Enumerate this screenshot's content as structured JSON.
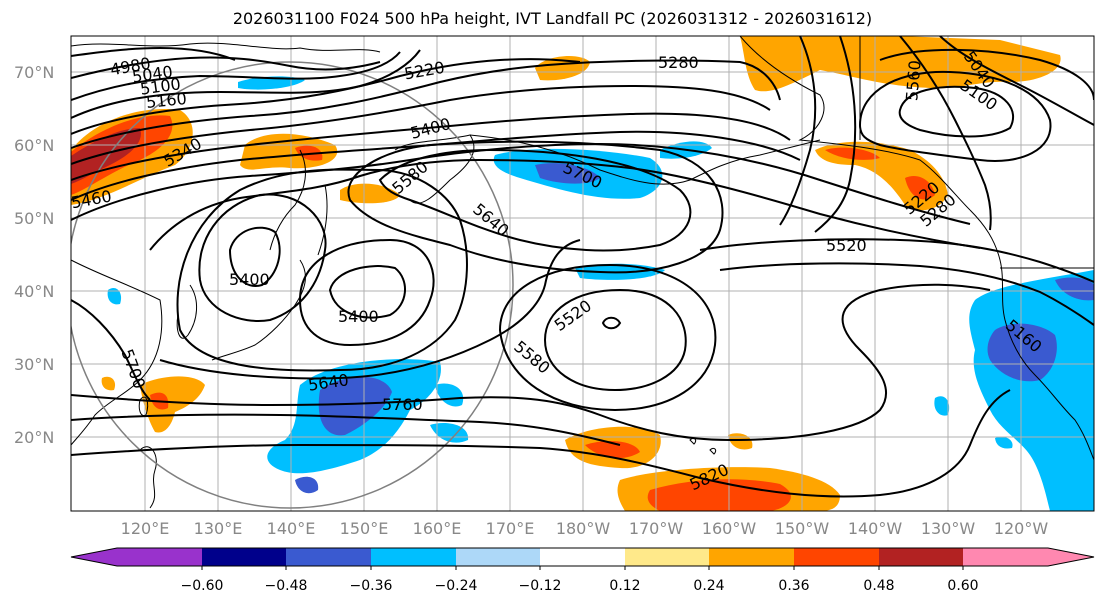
{
  "title": "2026031100 F024 500 hPa height, IVT Landfall PC (2026031312 - 2026031612)",
  "latitude_labels": [
    "70°N",
    "60°N",
    "50°N",
    "40°N",
    "30°N",
    "20°N"
  ],
  "longitude_labels": [
    "120°E",
    "130°E",
    "140°E",
    "150°E",
    "160°E",
    "170°E",
    "180°W",
    "170°W",
    "160°W",
    "150°W",
    "140°W",
    "130°W",
    "120°W"
  ],
  "contour_labels": [
    "4980",
    "5040",
    "5100",
    "5160",
    "5220",
    "5280",
    "5340",
    "5400",
    "5400",
    "5400",
    "5460",
    "5520",
    "5520",
    "5560",
    "5580",
    "5580",
    "5640",
    "5640",
    "5700",
    "5700",
    "5760",
    "5820",
    "5100",
    "5040",
    "5160",
    "5220",
    "5280"
  ],
  "colorbar": {
    "ticks": [
      "−0.60",
      "−0.48",
      "−0.36",
      "−0.24",
      "−0.12",
      "0.12",
      "0.24",
      "0.36",
      "0.48",
      "0.60"
    ],
    "colors": [
      "#9932cc",
      "#00008b",
      "#3a5ad0",
      "#00bfff",
      "#add8f8",
      "#ffffff",
      "#ffe98a",
      "#ffa500",
      "#ff4500",
      "#b22222",
      "#ff88b0"
    ]
  },
  "colors": {
    "contour": "#000000",
    "coastline": "#000000",
    "grid": "#b0b0b0",
    "circle": "#808080"
  }
}
